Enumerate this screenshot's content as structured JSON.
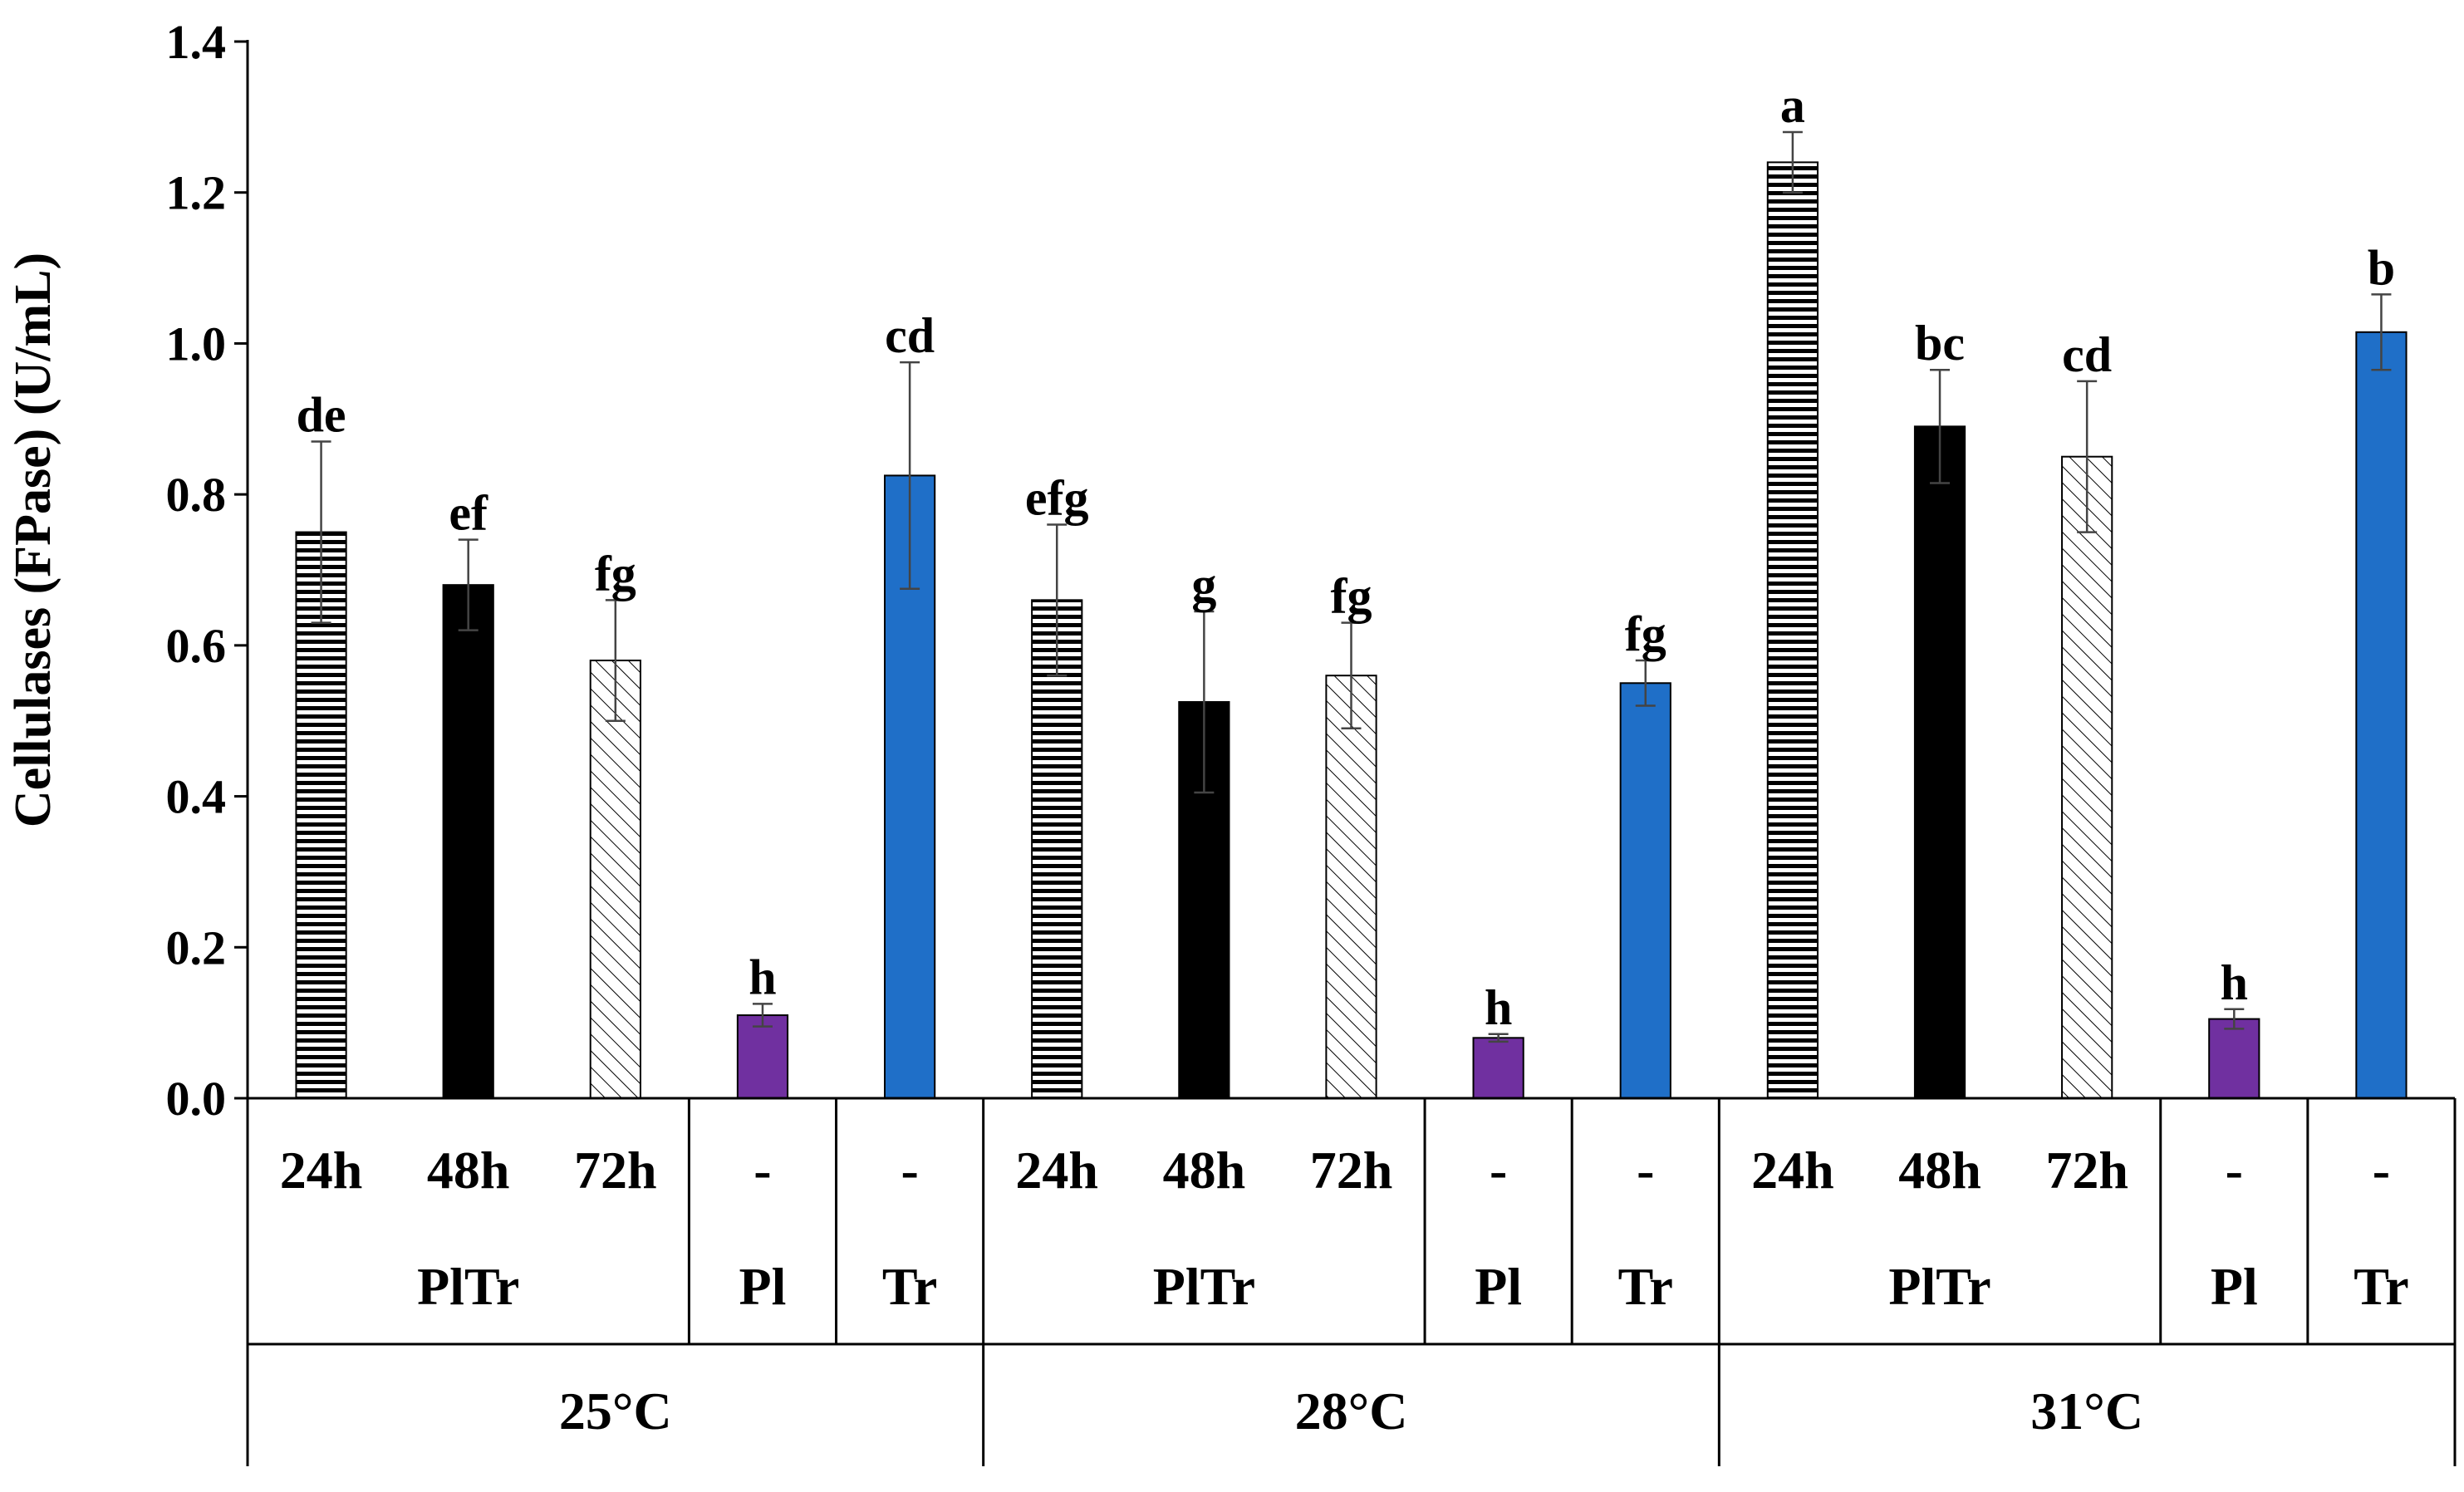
{
  "chart_data": {
    "type": "bar",
    "title": "",
    "ylabel": "Cellulases (FPase) (U/mL)",
    "xlabel": "",
    "ylim": [
      0,
      1.4
    ],
    "yticks": [
      "0.0",
      "0.2",
      "0.4",
      "0.6",
      "0.8",
      "1.0",
      "1.2",
      "1.4"
    ],
    "ytick_values": [
      0,
      0.2,
      0.4,
      0.6,
      0.8,
      1.0,
      1.2,
      1.4
    ],
    "grid": false,
    "legend": "none",
    "colors": {
      "plain_black": "#000000",
      "pl_purple": "#7030a0",
      "tr_blue": "#1f6fc8",
      "hatch_stroke": "#000000"
    },
    "groups": [
      {
        "temperature": "25°C",
        "organisms": [
          {
            "label": "PlTr",
            "bars": [
              {
                "time": "24h",
                "value": 0.75,
                "error": 0.12,
                "sig": "de",
                "pattern": "horizontal-stripes"
              },
              {
                "time": "48h",
                "value": 0.68,
                "error": 0.06,
                "sig": "ef",
                "pattern": "solid-black"
              },
              {
                "time": "72h",
                "value": 0.58,
                "error": 0.08,
                "sig": "fg",
                "pattern": "diagonal-hatch"
              }
            ]
          },
          {
            "label": "Pl",
            "bars": [
              {
                "time": "-",
                "value": 0.11,
                "error": 0.015,
                "sig": "h",
                "pattern": "solid-purple"
              }
            ]
          },
          {
            "label": "Tr",
            "bars": [
              {
                "time": "-",
                "value": 0.825,
                "error": 0.15,
                "sig": "cd",
                "pattern": "solid-blue"
              }
            ]
          }
        ]
      },
      {
        "temperature": "28°C",
        "organisms": [
          {
            "label": "PlTr",
            "bars": [
              {
                "time": "24h",
                "value": 0.66,
                "error": 0.1,
                "sig": "efg",
                "pattern": "horizontal-stripes"
              },
              {
                "time": "48h",
                "value": 0.525,
                "error": 0.12,
                "sig": "g",
                "pattern": "solid-black"
              },
              {
                "time": "72h",
                "value": 0.56,
                "error": 0.07,
                "sig": "fg",
                "pattern": "diagonal-hatch"
              }
            ]
          },
          {
            "label": "Pl",
            "bars": [
              {
                "time": "-",
                "value": 0.08,
                "error": 0.005,
                "sig": "h",
                "pattern": "solid-purple"
              }
            ]
          },
          {
            "label": "Tr",
            "bars": [
              {
                "time": "-",
                "value": 0.55,
                "error": 0.03,
                "sig": "fg",
                "pattern": "solid-blue"
              }
            ]
          }
        ]
      },
      {
        "temperature": "31°C",
        "organisms": [
          {
            "label": "PlTr",
            "bars": [
              {
                "time": "24h",
                "value": 1.24,
                "error": 0.04,
                "sig": "a",
                "pattern": "horizontal-stripes"
              },
              {
                "time": "48h",
                "value": 0.89,
                "error": 0.075,
                "sig": "bc",
                "pattern": "solid-black"
              },
              {
                "time": "72h",
                "value": 0.85,
                "error": 0.1,
                "sig": "cd",
                "pattern": "diagonal-hatch"
              }
            ]
          },
          {
            "label": "Pl",
            "bars": [
              {
                "time": "-",
                "value": 0.105,
                "error": 0.013,
                "sig": "h",
                "pattern": "solid-purple"
              }
            ]
          },
          {
            "label": "Tr",
            "bars": [
              {
                "time": "-",
                "value": 1.015,
                "error": 0.05,
                "sig": "b",
                "pattern": "solid-blue"
              }
            ]
          }
        ]
      }
    ]
  }
}
